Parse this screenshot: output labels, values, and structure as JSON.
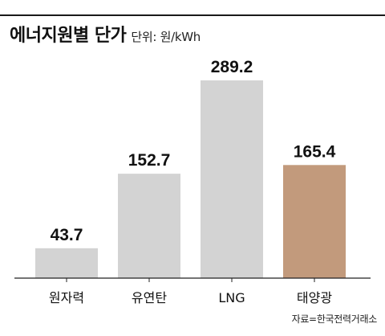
{
  "header": {
    "title": "에너지원별 단가",
    "unit": "단위: 원/kWh"
  },
  "source": "자료=한국전력거래소",
  "colors": {
    "bar_default": "#d3d3d3",
    "bar_highlight": "#c29a7c",
    "axis": "#222222",
    "text": "#111111"
  },
  "chart_data": {
    "type": "bar",
    "categories": [
      "원자력",
      "유연탄",
      "LNG",
      "태양광"
    ],
    "values": [
      43.7,
      152.7,
      289.2,
      165.4
    ],
    "data_labels": [
      "43.7",
      "152.7",
      "289.2",
      "165.4"
    ],
    "highlight_category": "태양광",
    "title": "에너지원별 단가",
    "unit": "단위: 원/kWh",
    "ylim": [
      0,
      289.2
    ],
    "grid": false
  }
}
